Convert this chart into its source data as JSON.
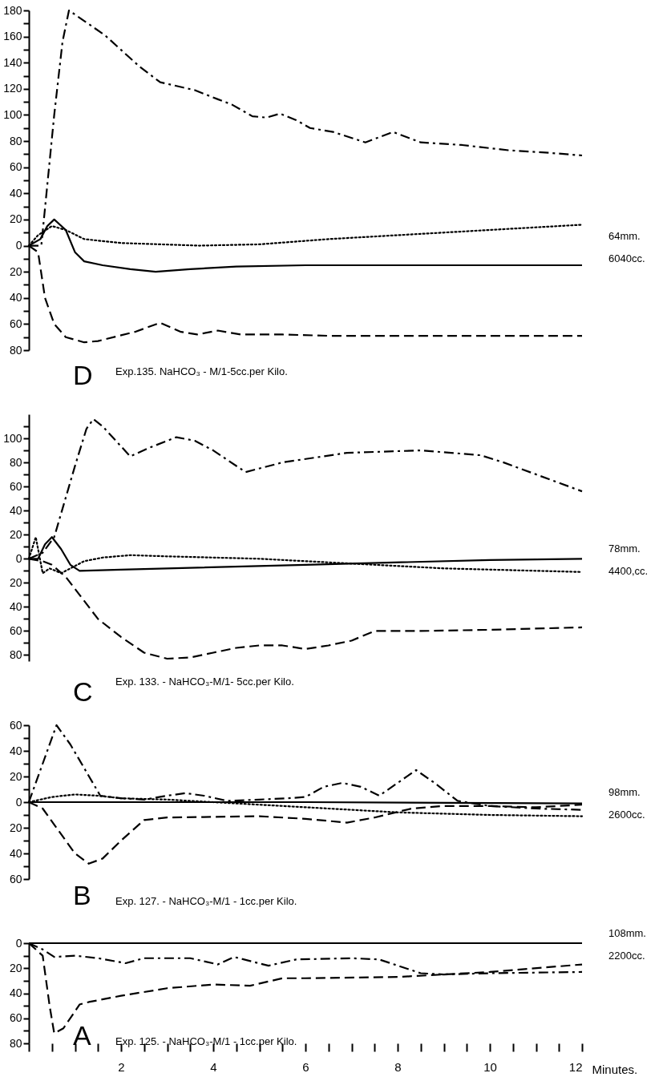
{
  "chart_data": [
    {
      "type": "line",
      "title": "D",
      "subtitle": "Exp.135. NaHCO₃ - M/1-5cc.per Kilo.",
      "annotations": [
        "64mm.",
        "6040cc."
      ],
      "xlim": [
        0,
        12
      ],
      "ylim": [
        -80,
        180
      ],
      "tick_labels": "y",
      "yticks": [
        {
          "value": -80,
          "label": "80"
        },
        {
          "value": -70,
          "label": null
        },
        {
          "value": -60,
          "label": "60"
        },
        {
          "value": -50,
          "label": null
        },
        {
          "value": -40,
          "label": "40"
        },
        {
          "value": -30,
          "label": null
        },
        {
          "value": -20,
          "label": "20"
        },
        {
          "value": -10,
          "label": null
        },
        0,
        {
          "value": 10,
          "label": null
        },
        20,
        {
          "value": 30,
          "label": null
        },
        40,
        {
          "value": 50,
          "label": null
        },
        60,
        {
          "value": 70,
          "label": null
        },
        80,
        {
          "value": 90,
          "label": null
        },
        100,
        {
          "value": 110,
          "label": null
        },
        120,
        {
          "value": 130,
          "label": null
        },
        140,
        {
          "value": 150,
          "label": null
        },
        160,
        {
          "value": 170,
          "label": null
        },
        180
      ],
      "series": [
        {
          "color": "#000000",
          "line_style": "dashdot",
          "x": [
            0,
            0.27,
            0.55,
            0.73,
            0.87,
            1.2,
            1.65,
            2.4,
            2.85,
            3.6,
            4.1,
            4.4,
            4.85,
            5.15,
            5.45,
            5.8,
            6.1,
            6.6,
            7.3,
            7.9,
            8.5,
            9.4,
            10.4,
            11.3,
            12
          ],
          "values": [
            0,
            0,
            100,
            156,
            180,
            172,
            161,
            137,
            125,
            119,
            112,
            108,
            99,
            98,
            101,
            96,
            90,
            87,
            79,
            87,
            79,
            77,
            73,
            71,
            69
          ]
        },
        {
          "color": "#000000",
          "line_style": "dotted",
          "x": [
            0,
            0.2,
            0.5,
            0.8,
            1.2,
            2,
            3.7,
            5,
            6.5,
            8,
            10,
            12
          ],
          "values": [
            0,
            8,
            15,
            12,
            5,
            2,
            0,
            1,
            5,
            8,
            12,
            16
          ]
        },
        {
          "color": "#000000",
          "line_style": "solid",
          "x": [
            0,
            0.25,
            0.4,
            0.55,
            0.8,
            1.0,
            1.2,
            1.6,
            2.2,
            2.75,
            3.5,
            4.5,
            6,
            12
          ],
          "values": [
            0,
            5,
            15,
            20,
            12,
            -5,
            -12,
            -15,
            -18,
            -20,
            -18,
            -16,
            -15,
            -15
          ]
        },
        {
          "color": "#000000",
          "line_style": "dashed",
          "x": [
            0,
            0.2,
            0.35,
            0.55,
            0.8,
            1.2,
            1.5,
            2.3,
            2.85,
            3.3,
            3.65,
            4.1,
            4.6,
            5.5,
            6.5,
            12
          ],
          "values": [
            0,
            -5,
            -40,
            -60,
            -70,
            -74,
            -73,
            -66,
            -59,
            -66,
            -68,
            -65,
            -68,
            -68,
            -69,
            -69
          ]
        }
      ]
    },
    {
      "type": "line",
      "title": "C",
      "subtitle": "Exp. 133. - NaHCO₃-M/1- 5cc.per Kilo.",
      "annotations": [
        "78mm.",
        "4400,cc."
      ],
      "xlim": [
        0,
        12
      ],
      "ylim": [
        -85,
        120
      ],
      "tick_labels": "y",
      "yticks": [
        {
          "value": -80,
          "label": "80"
        },
        {
          "value": -70,
          "label": null
        },
        {
          "value": -60,
          "label": "60"
        },
        {
          "value": -50,
          "label": null
        },
        {
          "value": -40,
          "label": "40"
        },
        {
          "value": -30,
          "label": null
        },
        {
          "value": -20,
          "label": "20"
        },
        {
          "value": -10,
          "label": null
        },
        0,
        {
          "value": 10,
          "label": null
        },
        20,
        {
          "value": 30,
          "label": null
        },
        40,
        {
          "value": 50,
          "label": null
        },
        60,
        {
          "value": 70,
          "label": null
        },
        80,
        {
          "value": 90,
          "label": null
        },
        100,
        {
          "value": 110,
          "label": null
        }
      ],
      "series": [
        {
          "color": "#000000",
          "line_style": "dashdot",
          "x": [
            0,
            0.3,
            0.55,
            1.0,
            1.25,
            1.4,
            1.6,
            2.2,
            2.6,
            3.2,
            3.6,
            4.0,
            4.7,
            5.5,
            6.9,
            8.5,
            9.8,
            10.3,
            12
          ],
          "values": [
            0,
            5,
            18,
            77,
            108,
            116,
            110,
            85,
            92,
            101,
            98,
            90,
            72,
            80,
            88,
            90,
            86,
            80,
            56
          ]
        },
        {
          "color": "#000000",
          "line_style": "dotted",
          "x": [
            0,
            0.15,
            0.3,
            0.45,
            0.7,
            0.9,
            1.2,
            1.6,
            2.2,
            3,
            5,
            7,
            9,
            12
          ],
          "values": [
            0,
            18,
            -12,
            -8,
            -12,
            -8,
            -2,
            1,
            3,
            2,
            0,
            -4,
            -8,
            -11
          ]
        },
        {
          "color": "#000000",
          "line_style": "solid",
          "x": [
            0,
            0.2,
            0.35,
            0.5,
            0.7,
            0.9,
            1.1,
            2,
            6,
            10,
            12
          ],
          "values": [
            0,
            0,
            12,
            18,
            8,
            -5,
            -10,
            -9,
            -5,
            -1,
            0
          ]
        },
        {
          "color": "#000000",
          "line_style": "dashed",
          "x": [
            0,
            0.3,
            0.5,
            0.8,
            1.1,
            1.5,
            2,
            2.5,
            3,
            3.5,
            4,
            4.5,
            5,
            5.5,
            6,
            6.5,
            7,
            7.5,
            8.5,
            10,
            12
          ],
          "values": [
            0,
            -2,
            -5,
            -15,
            -30,
            -50,
            -65,
            -78,
            -83,
            -82,
            -78,
            -74,
            -72,
            -72,
            -75,
            -72,
            -68,
            -60,
            -60,
            -59,
            -57
          ]
        }
      ]
    },
    {
      "type": "line",
      "title": "B",
      "subtitle": "Exp. 127. - NaHCO₃-M/1 - 1cc.per Kilo.",
      "annotations": [
        "98mm.",
        "2600cc."
      ],
      "xlim": [
        0,
        12
      ],
      "ylim": [
        -60,
        60
      ],
      "tick_labels": "y",
      "yticks": [
        {
          "value": -60,
          "label": "60"
        },
        {
          "value": -50,
          "label": null
        },
        {
          "value": -40,
          "label": "40"
        },
        {
          "value": -30,
          "label": null
        },
        {
          "value": -20,
          "label": "20"
        },
        {
          "value": -10,
          "label": null
        },
        0,
        {
          "value": 10,
          "label": null
        },
        20,
        {
          "value": 30,
          "label": null
        },
        40,
        {
          "value": 50,
          "label": null
        },
        60
      ],
      "series": [
        {
          "color": "#000000",
          "line_style": "dashdot",
          "x": [
            0,
            0.3,
            0.6,
            0.9,
            1.55,
            2,
            2.5,
            3,
            3.4,
            3.8,
            4.3,
            5,
            5.6,
            6,
            6.4,
            6.8,
            7.2,
            7.6,
            8,
            8.4,
            8.8,
            9.3,
            10,
            11,
            12
          ],
          "values": [
            0,
            30,
            60,
            45,
            5,
            3,
            2,
            5,
            7,
            5,
            1,
            2,
            3,
            4,
            12,
            15,
            12,
            5,
            15,
            25,
            15,
            1,
            -3,
            -5,
            -6
          ]
        },
        {
          "color": "#000000",
          "line_style": "dotted",
          "x": [
            0,
            0.5,
            1,
            1.5,
            2,
            3,
            4,
            5,
            6,
            7,
            8,
            9,
            10,
            12
          ],
          "values": [
            0,
            4,
            6,
            5,
            3,
            2,
            0,
            -2,
            -4,
            -6,
            -8,
            -9,
            -10,
            -11
          ]
        },
        {
          "color": "#000000",
          "line_style": "solid",
          "x": [
            0,
            6,
            12
          ],
          "values": [
            0,
            0,
            -1
          ]
        },
        {
          "color": "#000000",
          "line_style": "dashed",
          "x": [
            0,
            0.3,
            0.6,
            1,
            1.3,
            1.6,
            2,
            2.5,
            3,
            5,
            6,
            6.9,
            7.5,
            8.3,
            9,
            10,
            11,
            12
          ],
          "values": [
            0,
            -5,
            -20,
            -40,
            -48,
            -44,
            -30,
            -14,
            -12,
            -11,
            -13,
            -16,
            -12,
            -5,
            -3,
            -3,
            -4,
            -2
          ]
        }
      ]
    },
    {
      "type": "line",
      "title": "A",
      "subtitle": "Exp. 125. - NaHCO₃-M/1 - 1cc.per Kilo.",
      "annotations": [
        "108mm.",
        "2200cc."
      ],
      "xlabel": "Minutes.",
      "xlim": [
        0,
        12
      ],
      "ylim": [
        -80,
        0
      ],
      "xticks": [
        {
          "value": 0,
          "label": null
        },
        {
          "value": 0.5,
          "label": null
        },
        {
          "value": 1,
          "label": null
        },
        {
          "value": 1.5,
          "label": null
        },
        2,
        {
          "value": 2.5,
          "label": null
        },
        {
          "value": 3,
          "label": null
        },
        {
          "value": 3.5,
          "label": null
        },
        4,
        {
          "value": 4.5,
          "label": null
        },
        {
          "value": 5,
          "label": null
        },
        {
          "value": 5.5,
          "label": null
        },
        6,
        {
          "value": 6.5,
          "label": null
        },
        {
          "value": 7,
          "label": null
        },
        {
          "value": 7.5,
          "label": null
        },
        8,
        {
          "value": 8.5,
          "label": null
        },
        {
          "value": 9,
          "label": null
        },
        {
          "value": 9.5,
          "label": null
        },
        10,
        {
          "value": 10.5,
          "label": null
        },
        {
          "value": 11,
          "label": null
        },
        {
          "value": 11.5,
          "label": null
        },
        12
      ],
      "yticks": [
        {
          "value": -80,
          "label": "80"
        },
        {
          "value": -70,
          "label": null
        },
        {
          "value": -60,
          "label": "60"
        },
        {
          "value": -50,
          "label": null
        },
        {
          "value": -40,
          "label": "40"
        },
        {
          "value": -30,
          "label": null
        },
        {
          "value": -20,
          "label": "20"
        },
        {
          "value": -10,
          "label": null
        },
        0
      ],
      "series": [
        {
          "color": "#000000",
          "line_style": "solid",
          "x": [
            0,
            12
          ],
          "values": [
            0,
            0
          ]
        },
        {
          "color": "#000000",
          "line_style": "dashdot",
          "x": [
            0,
            0.3,
            0.55,
            1,
            1.5,
            2.1,
            2.5,
            3.5,
            4.1,
            4.45,
            5.2,
            5.8,
            7,
            7.6,
            8.5,
            9,
            10,
            12
          ],
          "values": [
            0,
            -5,
            -11,
            -10,
            -12,
            -16,
            -12,
            -12,
            -17,
            -11,
            -18,
            -13,
            -12,
            -13,
            -24,
            -25,
            -24,
            -23
          ]
        },
        {
          "color": "#000000",
          "line_style": "dashed",
          "x": [
            0,
            0.3,
            0.45,
            0.55,
            0.75,
            1.1,
            1.3,
            2,
            3,
            4,
            4.8,
            5.5,
            6,
            8,
            9,
            10,
            12
          ],
          "values": [
            0,
            -10,
            -50,
            -72,
            -68,
            -49,
            -47,
            -42,
            -36,
            -33,
            -34,
            -28,
            -28,
            -27,
            -25,
            -23,
            -17
          ]
        }
      ]
    }
  ]
}
